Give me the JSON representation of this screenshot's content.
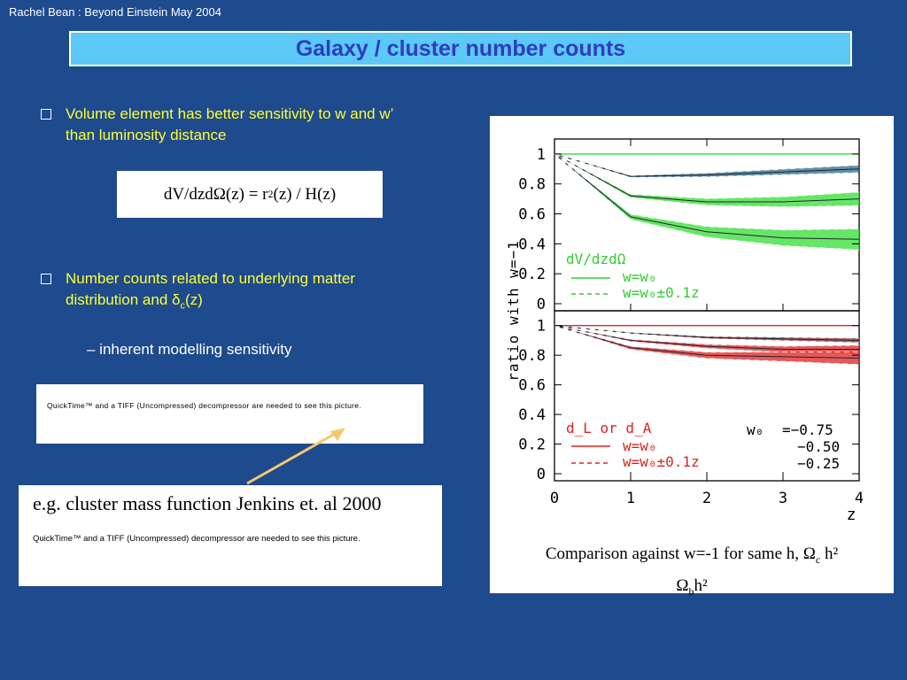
{
  "header": {
    "text": "Rachel Bean : Beyond Einstein May 2004"
  },
  "title": "Galaxy / cluster number counts",
  "bullets": [
    {
      "icon": "bullet-square-icon",
      "line1": "Volume element has better sensitivity to w and w’",
      "line2": "than luminosity distance"
    },
    {
      "icon": "bullet-square-icon",
      "line1": "Number counts related to underlying matter",
      "line2_prefix": "distribution and ",
      "delta": "δ",
      "delta_sub": "c",
      "line2_suffix": "(z)"
    }
  ],
  "formula": {
    "lhs": "dV/dzdΩ(z) = r",
    "sup": "2",
    "rhs": "(z) / H(z)"
  },
  "sub_item": "– inherent modelling sensitivity",
  "quicktime_placeholder_1": "QuickTime™ and a TIFF (Uncompressed) decompressor are needed to see this picture.",
  "jenkins": {
    "caption": "e.g. cluster mass function Jenkins et. al 2000",
    "quicktime_placeholder": "QuickTime™ and a TIFF (Uncompressed) decompressor are needed to see this picture."
  },
  "comparison_caption": {
    "text1": "Comparison against w=-1 for same h,  Ω",
    "sub1": "c",
    "text2": " h²",
    "text3": "Ω",
    "sub2": "b",
    "text4": "h²"
  },
  "colors": {
    "background": "#1e4a8e",
    "title_bar": "#5bc8f5",
    "title_text": "#2e3cc4",
    "bullet_text": "#ffff33",
    "arrow": "#f5c86b",
    "green": "#33dd33",
    "red": "#dd2222",
    "teal": "#2e6a8a"
  },
  "chart_data": {
    "type": "area",
    "panels": [
      {
        "label": "dV/dzdΩ",
        "legend": [
          {
            "style": "solid",
            "text": "w=w₀"
          },
          {
            "style": "dashed",
            "text": "w=w₀±0.1z"
          }
        ],
        "ylim": [
          0,
          1.1
        ],
        "yticks": [
          "0",
          "0.2",
          "0.4",
          "0.6",
          "0.8",
          "1"
        ],
        "series": [
          {
            "name": "−0.75",
            "x": [
              0,
              1,
              2,
              3,
              4
            ],
            "values": [
              1.0,
              0.85,
              0.86,
              0.88,
              0.9
            ]
          },
          {
            "name": "−0.50",
            "x": [
              0,
              1,
              2,
              3,
              4
            ],
            "values": [
              1.0,
              0.72,
              0.68,
              0.68,
              0.7
            ]
          },
          {
            "name": "−0.25",
            "x": [
              0,
              1,
              2,
              3,
              4
            ],
            "values": [
              1.0,
              0.58,
              0.48,
              0.44,
              0.43
            ]
          }
        ]
      },
      {
        "label": "d_L  or  d_A",
        "legend": [
          {
            "style": "solid",
            "text": "w=w₀"
          },
          {
            "style": "dashed",
            "text": "w=w₀±0.1z"
          }
        ],
        "ylim": [
          0,
          1.1
        ],
        "yticks": [
          "0",
          "0.2",
          "0.4",
          "0.6",
          "0.8",
          "1"
        ],
        "series": [
          {
            "name": "−0.75",
            "x": [
              0,
              1,
              2,
              3,
              4
            ],
            "values": [
              1.0,
              0.95,
              0.92,
              0.91,
              0.9
            ]
          },
          {
            "name": "−0.50",
            "x": [
              0,
              1,
              2,
              3,
              4
            ],
            "values": [
              1.0,
              0.9,
              0.86,
              0.84,
              0.84
            ]
          },
          {
            "name": "−0.25",
            "x": [
              0,
              1,
              2,
              3,
              4
            ],
            "values": [
              1.0,
              0.85,
              0.8,
              0.79,
              0.78
            ]
          }
        ],
        "w0_label": "w₀",
        "w0_values": [
          "=−0.75",
          "−0.50",
          "−0.25"
        ]
      }
    ],
    "xlabel": "z",
    "ylabel": "ratio  with  w=−1",
    "xlim": [
      0,
      4
    ],
    "xticks": [
      "0",
      "1",
      "2",
      "3",
      "4"
    ]
  }
}
